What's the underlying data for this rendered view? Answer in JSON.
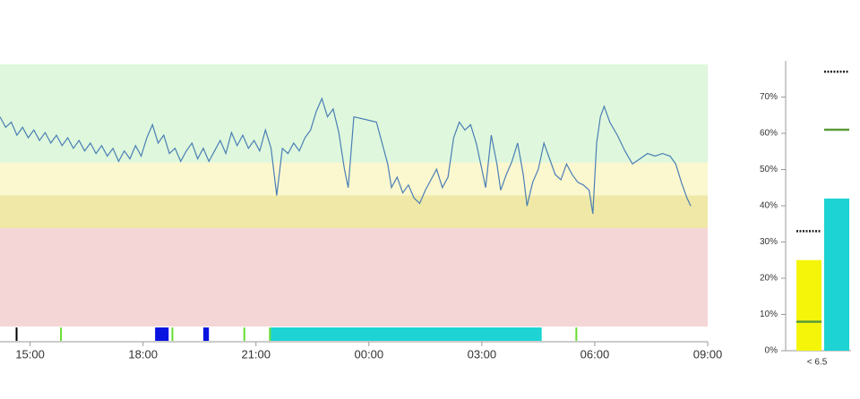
{
  "chart_data": [
    {
      "type": "line",
      "xlim": [
        14.2,
        33
      ],
      "ylim": [
        0,
        100
      ],
      "xticks": [
        {
          "value": 15,
          "label": "15:00"
        },
        {
          "value": 18,
          "label": "18:00"
        },
        {
          "value": 21,
          "label": "21:00"
        },
        {
          "value": 24,
          "label": "00:00"
        },
        {
          "value": 27,
          "label": "03:00"
        },
        {
          "value": 30,
          "label": "06:00"
        },
        {
          "value": 33,
          "label": "09:00"
        }
      ],
      "bands": [
        {
          "from": 62.5,
          "to": 100,
          "color": "#dff7dc"
        },
        {
          "from": 50,
          "to": 62.5,
          "color": "#fbf7cf"
        },
        {
          "from": 37.5,
          "to": 50,
          "color": "#efe8a6"
        },
        {
          "from": 0,
          "to": 37.5,
          "color": "#f5d6d6"
        }
      ],
      "series": [
        {
          "color": "#4a7fb5",
          "x": [
            14.2,
            14.35,
            14.5,
            14.65,
            14.8,
            14.95,
            15.1,
            15.25,
            15.4,
            15.55,
            15.7,
            15.85,
            16.0,
            16.15,
            16.3,
            16.45,
            16.6,
            16.75,
            16.9,
            17.05,
            17.2,
            17.35,
            17.5,
            17.65,
            17.8,
            17.95,
            18.1,
            18.25,
            18.4,
            18.55,
            18.7,
            18.85,
            19.0,
            19.15,
            19.3,
            19.45,
            19.6,
            19.75,
            19.9,
            20.05,
            20.2,
            20.35,
            20.5,
            20.65,
            20.8,
            20.95,
            21.1,
            21.25,
            21.4,
            21.55,
            21.7,
            21.85,
            22.0,
            22.15,
            22.3,
            22.45,
            22.6,
            22.75,
            22.9,
            23.05,
            23.2,
            23.35,
            23.45,
            23.6,
            23.9,
            24.2,
            24.35,
            24.5,
            24.6,
            24.75,
            24.9,
            25.05,
            25.2,
            25.35,
            25.5,
            25.65,
            25.8,
            25.95,
            26.1,
            26.25,
            26.4,
            26.55,
            26.7,
            26.85,
            27.0,
            27.1,
            27.25,
            27.4,
            27.5,
            27.65,
            27.8,
            27.95,
            28.1,
            28.2,
            28.35,
            28.5,
            28.65,
            28.8,
            28.95,
            29.1,
            29.25,
            29.4,
            29.55,
            29.7,
            29.85,
            29.95,
            30.05,
            30.15,
            30.25,
            30.4,
            30.6,
            30.8,
            31.0,
            31.2,
            31.4,
            31.6,
            31.8,
            32.0,
            32.15,
            32.3,
            32.45,
            32.55
          ],
          "values": [
            80,
            76,
            78,
            73,
            76,
            72,
            75,
            71,
            74,
            70,
            73,
            69,
            72,
            68,
            71,
            67,
            70,
            66,
            69,
            65,
            68,
            63,
            67,
            64,
            69,
            65,
            72,
            77,
            70,
            73,
            66,
            68,
            63,
            67,
            70,
            64,
            68,
            63,
            67,
            71,
            66,
            74,
            69,
            73,
            68,
            71,
            67,
            75,
            68,
            50,
            68,
            66,
            70,
            67,
            72,
            75,
            82,
            87,
            80,
            83,
            74,
            60,
            53,
            80,
            79,
            78,
            70,
            62,
            53,
            57,
            51,
            54,
            49,
            47,
            52,
            56,
            60,
            53,
            57,
            72,
            78,
            75,
            77,
            70,
            60,
            53,
            73,
            62,
            52,
            58,
            63,
            70,
            58,
            46,
            55,
            60,
            70,
            64,
            58,
            56,
            62,
            58,
            55,
            54,
            52,
            43,
            70,
            80,
            84,
            78,
            73,
            67,
            62,
            64,
            66,
            65,
            66,
            65,
            62,
            55,
            49,
            46
          ]
        }
      ],
      "markers": [
        {
          "x": 14.64,
          "color": "#000000"
        },
        {
          "x": 15.82,
          "color": "#66dd33"
        },
        {
          "x": 18.78,
          "color": "#66dd33"
        },
        {
          "x": 20.69,
          "color": "#66dd33"
        },
        {
          "x": 21.37,
          "color": "#66dd33"
        },
        {
          "x": 29.51,
          "color": "#66dd33"
        }
      ],
      "blocks": [
        {
          "start": 18.32,
          "end": 18.68,
          "color": "#0a14e0"
        },
        {
          "start": 19.6,
          "end": 19.75,
          "color": "#0a14e0"
        },
        {
          "start": 21.39,
          "end": 28.59,
          "color": "#1dd3d3"
        }
      ]
    },
    {
      "type": "bar",
      "ylim": [
        0,
        80
      ],
      "yticks": [
        {
          "value": 0,
          "label": "0%"
        },
        {
          "value": 10,
          "label": "10%"
        },
        {
          "value": 20,
          "label": "20%"
        },
        {
          "value": 30,
          "label": "30%"
        },
        {
          "value": 40,
          "label": "40%"
        },
        {
          "value": 50,
          "label": "50%"
        },
        {
          "value": 60,
          "label": "60%"
        },
        {
          "value": 70,
          "label": "70%"
        }
      ],
      "category": "< 6.5",
      "values": [
        25,
        42
      ],
      "colors": [
        "#f5f50a",
        "#1dd3d3"
      ],
      "targets_black": [
        33,
        77
      ],
      "targets_green": [
        8,
        61
      ]
    }
  ]
}
